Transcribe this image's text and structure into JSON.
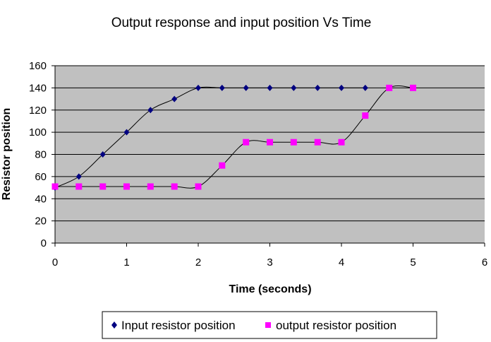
{
  "chart_data": {
    "type": "scatter",
    "title": "Output response and input position Vs Time",
    "xlabel": "Time (seconds)",
    "ylabel": "Resistor position",
    "xlim": [
      0,
      6
    ],
    "ylim": [
      0,
      160
    ],
    "x_ticks": [
      "0",
      "1",
      "2",
      "3",
      "4",
      "5",
      "6"
    ],
    "y_ticks": [
      "0",
      "20",
      "40",
      "60",
      "80",
      "100",
      "120",
      "140",
      "160"
    ],
    "grid": "horizontal",
    "plot_background": "#c0c0c0",
    "legend_position": "bottom",
    "series": [
      {
        "name": "Input resistor position",
        "color": "#000080",
        "marker": "diamond",
        "connected_with_smooth_line": true,
        "x": [
          0,
          0.333,
          0.667,
          1,
          1.333,
          1.667,
          2,
          2.333,
          2.667,
          3,
          3.333,
          3.667,
          4,
          4.333
        ],
        "y": [
          50,
          60,
          80,
          100,
          120,
          130,
          140,
          140,
          140,
          140,
          140,
          140,
          140,
          140
        ]
      },
      {
        "name": "output resistor position",
        "color": "#ff00ff",
        "marker": "square",
        "connected_with_smooth_line": true,
        "x": [
          0,
          0.333,
          0.667,
          1,
          1.333,
          1.667,
          2,
          2.333,
          2.667,
          3,
          3.333,
          3.667,
          4,
          4.333,
          4.667,
          5
        ],
        "y": [
          51,
          51,
          51,
          51,
          51,
          51,
          51,
          70,
          91,
          91,
          91,
          91,
          91,
          115,
          140,
          140
        ]
      }
    ]
  }
}
